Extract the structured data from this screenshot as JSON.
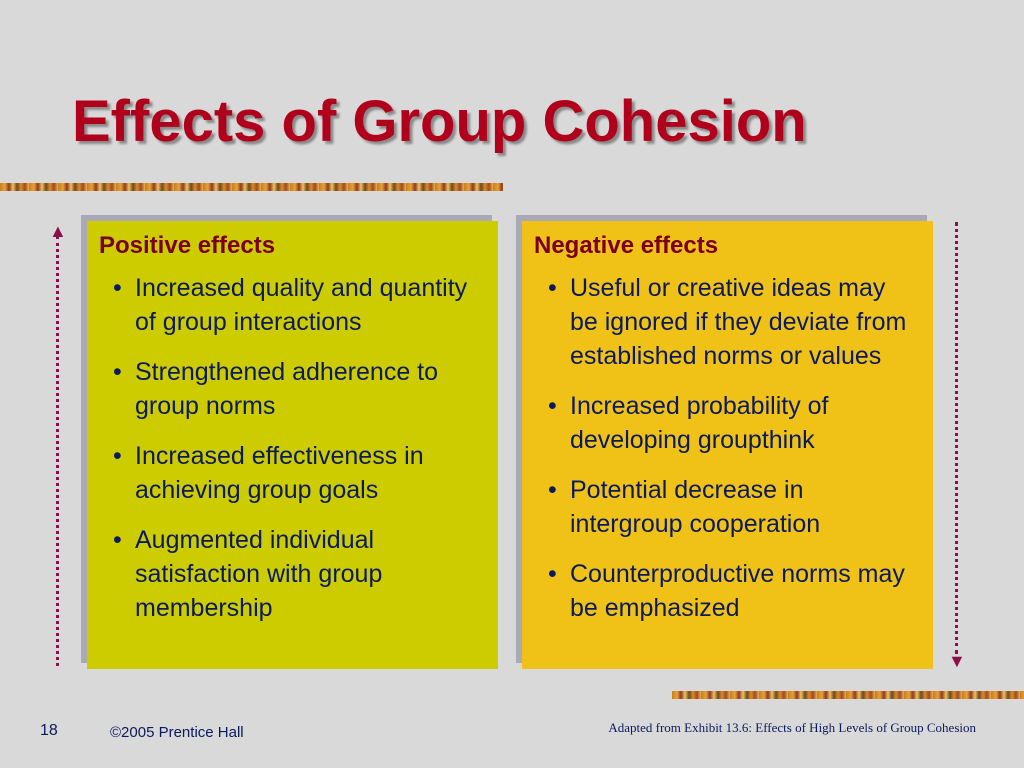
{
  "slide": {
    "title": "Effects of Group Cohesion"
  },
  "positive": {
    "heading": "Positive effects",
    "items": [
      "Increased quality and quantity of group interactions",
      "Strengthened adherence to group norms",
      "Increased effectiveness in achieving group goals",
      "Augmented individual satisfaction with group membership"
    ]
  },
  "negative": {
    "heading": "Negative effects",
    "items": [
      "Useful or creative ideas may be ignored if they deviate from established norms or values",
      "Increased probability of developing groupthink",
      "Potential decrease in intergroup cooperation",
      "Counterproductive norms may be emphasized"
    ]
  },
  "footer": {
    "slide_number": "18",
    "copyright": "©2005 Prentice Hall",
    "source": "Adapted from Exhibit 13.6: Effects of High Levels of Group Cohesion"
  },
  "colors": {
    "title": "#b0001c",
    "positive_panel": "#cccc00",
    "negative_panel": "#f0c218",
    "heading": "#7a0020",
    "body_text": "#0b1a5c",
    "arrow": "#8b0f4b"
  },
  "icons": {
    "up_arrow": "arrow-up-icon",
    "down_arrow": "arrow-down-icon"
  }
}
